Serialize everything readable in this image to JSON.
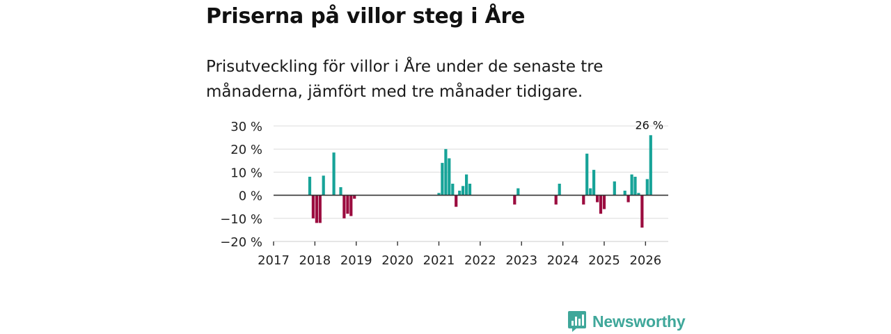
{
  "title": "Priserna på villor steg i Åre",
  "subtitle": "Prisutveckling för villor i Åre under de senaste tre månaderna, jämfört med tre månader tidigare.",
  "brand": {
    "name": "Newsworthy"
  },
  "colors": {
    "positive": "#17a398",
    "negative": "#9b0c3f",
    "grid": "#dcdcdc",
    "axis": "#333333",
    "brand": "#3fa79a"
  },
  "chart_data": {
    "type": "bar",
    "y_unit": "%",
    "ylim": [
      -20,
      30
    ],
    "yticks": [
      30,
      20,
      10,
      0,
      -10,
      -20
    ],
    "ytick_labels": [
      "30 %",
      "20 %",
      "10 %",
      "0 %",
      "−10 %",
      "−20 %"
    ],
    "xlim": [
      2017,
      2026.55
    ],
    "xticks": [
      2017,
      2018,
      2019,
      2020,
      2021,
      2022,
      2023,
      2024,
      2025,
      2026
    ],
    "xtick_labels": [
      "2017",
      "2018",
      "2019",
      "2020",
      "2021",
      "2022",
      "2023",
      "2024",
      "2025",
      "2026"
    ],
    "annotation": {
      "label": "26 %",
      "x": 2026.125,
      "value": 26
    },
    "points": [
      {
        "x": 2017.875,
        "value": 8
      },
      {
        "x": 2017.958,
        "value": -10
      },
      {
        "x": 2018.042,
        "value": -12
      },
      {
        "x": 2018.125,
        "value": -12
      },
      {
        "x": 2018.208,
        "value": 8.5
      },
      {
        "x": 2018.458,
        "value": 18.5
      },
      {
        "x": 2018.625,
        "value": 3.5
      },
      {
        "x": 2018.708,
        "value": -10
      },
      {
        "x": 2018.792,
        "value": -8
      },
      {
        "x": 2018.875,
        "value": -9
      },
      {
        "x": 2018.958,
        "value": -1.5
      },
      {
        "x": 2021.0,
        "value": 1
      },
      {
        "x": 2021.083,
        "value": 14
      },
      {
        "x": 2021.167,
        "value": 20
      },
      {
        "x": 2021.25,
        "value": 16
      },
      {
        "x": 2021.333,
        "value": 5
      },
      {
        "x": 2021.417,
        "value": -5
      },
      {
        "x": 2021.5,
        "value": 2
      },
      {
        "x": 2021.583,
        "value": 4
      },
      {
        "x": 2021.667,
        "value": 9
      },
      {
        "x": 2021.75,
        "value": 5
      },
      {
        "x": 2022.833,
        "value": -4
      },
      {
        "x": 2022.917,
        "value": 3
      },
      {
        "x": 2023.833,
        "value": -4
      },
      {
        "x": 2023.917,
        "value": 5
      },
      {
        "x": 2024.5,
        "value": -4
      },
      {
        "x": 2024.583,
        "value": 18
      },
      {
        "x": 2024.667,
        "value": 3
      },
      {
        "x": 2024.75,
        "value": 11
      },
      {
        "x": 2024.833,
        "value": -3
      },
      {
        "x": 2024.917,
        "value": -8
      },
      {
        "x": 2025.0,
        "value": -6
      },
      {
        "x": 2025.25,
        "value": 6
      },
      {
        "x": 2025.5,
        "value": 2
      },
      {
        "x": 2025.583,
        "value": -3
      },
      {
        "x": 2025.667,
        "value": 9
      },
      {
        "x": 2025.75,
        "value": 8
      },
      {
        "x": 2025.833,
        "value": 1
      },
      {
        "x": 2025.917,
        "value": -14
      },
      {
        "x": 2026.042,
        "value": 7
      },
      {
        "x": 2026.125,
        "value": 26
      }
    ]
  }
}
